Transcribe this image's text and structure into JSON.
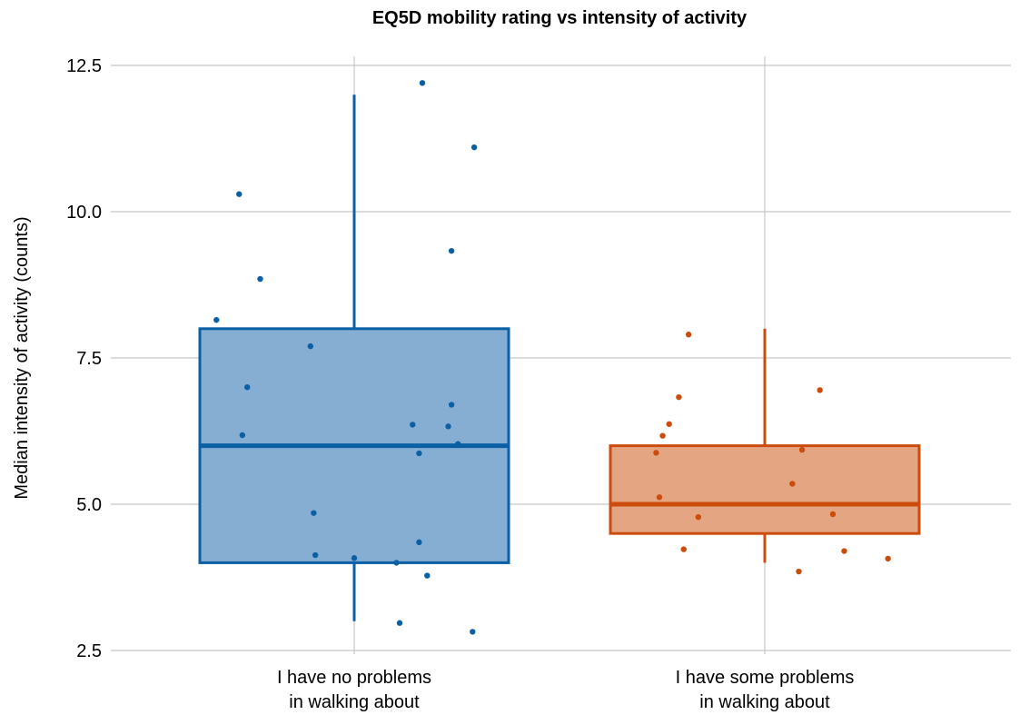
{
  "chart_data": {
    "type": "box",
    "title": "EQ5D mobility rating vs intensity of activity",
    "ylabel": "Median intensity of activity (counts)",
    "xlabel": "",
    "ylim": [
      2.5,
      12.5
    ],
    "yticks": [
      {
        "value": 2.5,
        "label": "2.5"
      },
      {
        "value": 5.0,
        "label": "5.0"
      },
      {
        "value": 7.5,
        "label": "7.5"
      },
      {
        "value": 10.0,
        "label": "10.0"
      },
      {
        "value": 12.5,
        "label": "12.5"
      }
    ],
    "grid": true,
    "groups": [
      {
        "label_lines": [
          "I have no problems",
          "in walking about"
        ],
        "color": "#0b5fa5",
        "fill": "#86aed3",
        "box": {
          "min": 3.0,
          "q1": 4.0,
          "median": 6.0,
          "q3": 8.0,
          "max": 12.0
        },
        "points": [
          {
            "dx": -0.71,
            "y": 10.3
          },
          {
            "dx": -0.58,
            "y": 8.85
          },
          {
            "dx": -0.85,
            "y": 8.15
          },
          {
            "dx": -0.27,
            "y": 7.7
          },
          {
            "dx": -0.66,
            "y": 7.0
          },
          {
            "dx": -0.69,
            "y": 6.18
          },
          {
            "dx": 0.42,
            "y": 12.2
          },
          {
            "dx": 0.74,
            "y": 11.1
          },
          {
            "dx": 0.6,
            "y": 9.33
          },
          {
            "dx": 0.6,
            "y": 6.7
          },
          {
            "dx": 0.36,
            "y": 6.36
          },
          {
            "dx": 0.58,
            "y": 6.33
          },
          {
            "dx": 0.64,
            "y": 6.03
          },
          {
            "dx": 0.4,
            "y": 5.87
          },
          {
            "dx": -0.25,
            "y": 4.85
          },
          {
            "dx": -0.24,
            "y": 4.13
          },
          {
            "dx": 0.0,
            "y": 4.08
          },
          {
            "dx": 0.26,
            "y": 4.0
          },
          {
            "dx": 0.4,
            "y": 4.35
          },
          {
            "dx": 0.45,
            "y": 3.78
          },
          {
            "dx": 0.28,
            "y": 2.97
          },
          {
            "dx": 0.73,
            "y": 2.82
          }
        ]
      },
      {
        "label_lines": [
          "I have some problems",
          "in walking about"
        ],
        "color": "#cc4c0b",
        "fill": "#e4a583",
        "box": {
          "min": 4.0,
          "q1": 4.5,
          "median": 5.0,
          "q3": 6.0,
          "max": 8.0
        },
        "points": [
          {
            "dx": -0.47,
            "y": 7.9
          },
          {
            "dx": -0.53,
            "y": 6.83
          },
          {
            "dx": -0.59,
            "y": 6.37
          },
          {
            "dx": -0.63,
            "y": 6.17
          },
          {
            "dx": -0.67,
            "y": 5.88
          },
          {
            "dx": -0.65,
            "y": 5.12
          },
          {
            "dx": -0.41,
            "y": 4.78
          },
          {
            "dx": -0.5,
            "y": 4.23
          },
          {
            "dx": 0.34,
            "y": 6.95
          },
          {
            "dx": 0.23,
            "y": 5.93
          },
          {
            "dx": 0.17,
            "y": 5.35
          },
          {
            "dx": 0.42,
            "y": 4.83
          },
          {
            "dx": 0.49,
            "y": 4.2
          },
          {
            "dx": 0.21,
            "y": 3.85
          },
          {
            "dx": 0.76,
            "y": 4.07
          }
        ]
      }
    ]
  }
}
